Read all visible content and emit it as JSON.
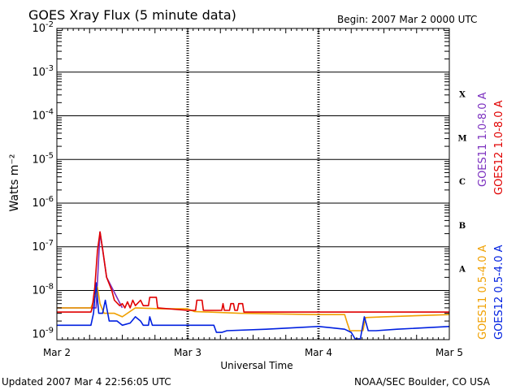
{
  "header": {
    "title": "GOES Xray Flux (5 minute data)",
    "begin": "Begin:  2007 Mar 2 0000 UTC"
  },
  "footer": {
    "updated": "Updated 2007 Mar  4 22:56:05 UTC",
    "credit": "NOAA/SEC Boulder, CO USA"
  },
  "colors": {
    "goes11_long": "#7b2fbf",
    "goes12_long": "#e00000",
    "goes11_short": "#f0a000",
    "goes12_short": "#0020e0"
  },
  "chart_data": {
    "type": "line",
    "title": "GOES Xray Flux (5 minute data)",
    "xlabel": "Universal Time",
    "ylabel": "Watts m⁻²",
    "yscale": "log",
    "ylim": [
      7.5e-10,
      0.01
    ],
    "xlim": [
      0,
      3
    ],
    "x_tick_labels": [
      "Mar 2",
      "Mar 3",
      "Mar 4",
      "Mar 5"
    ],
    "y_tick_labels": [
      {
        "base": "10",
        "exp": "-9"
      },
      {
        "base": "10",
        "exp": "-8"
      },
      {
        "base": "10",
        "exp": "-7"
      },
      {
        "base": "10",
        "exp": "-6"
      },
      {
        "base": "10",
        "exp": "-5"
      },
      {
        "base": "10",
        "exp": "-4"
      },
      {
        "base": "10",
        "exp": "-3"
      },
      {
        "base": "10",
        "exp": "-2"
      }
    ],
    "flare_classes": [
      "A",
      "B",
      "C",
      "M",
      "X"
    ],
    "grid": true,
    "series": [
      {
        "name": "GOES11 1.0-8.0 A",
        "color": "#7b2fbf",
        "points": [
          [
            0,
            4e-09
          ],
          [
            0.3,
            4e-09
          ],
          [
            0.33,
            2.2e-07
          ],
          [
            0.38,
            2e-08
          ],
          [
            0.5,
            4e-09
          ]
        ]
      },
      {
        "name": "GOES12 1.0-8.0 A",
        "color": "#e00000",
        "points": [
          [
            0,
            3.2e-09
          ],
          [
            0.26,
            3.2e-09
          ],
          [
            0.27,
            4e-09
          ],
          [
            0.29,
            1.2e-08
          ],
          [
            0.31,
            8e-08
          ],
          [
            0.33,
            2.2e-07
          ],
          [
            0.35,
            9e-08
          ],
          [
            0.38,
            2e-08
          ],
          [
            0.42,
            1e-08
          ],
          [
            0.44,
            6e-09
          ],
          [
            0.48,
            4.5e-09
          ],
          [
            0.5,
            5e-09
          ],
          [
            0.52,
            4e-09
          ],
          [
            0.54,
            5.5e-09
          ],
          [
            0.56,
            4e-09
          ],
          [
            0.58,
            6e-09
          ],
          [
            0.6,
            4.5e-09
          ],
          [
            0.64,
            6e-09
          ],
          [
            0.66,
            4.5e-09
          ],
          [
            0.7,
            4.5e-09
          ],
          [
            0.71,
            7e-09
          ],
          [
            0.76,
            7e-09
          ],
          [
            0.77,
            4e-09
          ],
          [
            1.0,
            3.5e-09
          ],
          [
            1.06,
            3.5e-09
          ],
          [
            1.07,
            6e-09
          ],
          [
            1.11,
            6e-09
          ],
          [
            1.12,
            3.5e-09
          ],
          [
            1.26,
            3.5e-09
          ],
          [
            1.27,
            5e-09
          ],
          [
            1.28,
            3.5e-09
          ],
          [
            1.32,
            3.5e-09
          ],
          [
            1.33,
            5e-09
          ],
          [
            1.35,
            5e-09
          ],
          [
            1.36,
            3.5e-09
          ],
          [
            1.38,
            3.5e-09
          ],
          [
            1.39,
            5e-09
          ],
          [
            1.42,
            5e-09
          ],
          [
            1.43,
            3.2e-09
          ],
          [
            3,
            3.2e-09
          ]
        ]
      },
      {
        "name": "GOES11 0.5-4.0 A",
        "color": "#f0a000",
        "points": [
          [
            0,
            4e-09
          ],
          [
            0.26,
            4e-09
          ],
          [
            0.3,
            8e-09
          ],
          [
            0.31,
            1.2e-08
          ],
          [
            0.33,
            5e-09
          ],
          [
            0.36,
            3e-09
          ],
          [
            0.44,
            3e-09
          ],
          [
            0.5,
            2.5e-09
          ],
          [
            0.6,
            4e-09
          ],
          [
            0.8,
            3.8e-09
          ],
          [
            1.0,
            3.8e-09
          ],
          [
            1.05,
            3.3e-09
          ],
          [
            1.4,
            3e-09
          ],
          [
            2.0,
            2.8e-09
          ],
          [
            2.2,
            2.8e-09
          ],
          [
            2.22,
            1.8e-09
          ],
          [
            2.24,
            1.2e-09
          ],
          [
            2.34,
            1.2e-09
          ],
          [
            2.36,
            2.4e-09
          ],
          [
            2.5,
            2.5e-09
          ],
          [
            3,
            2.8e-09
          ]
        ]
      },
      {
        "name": "GOES12 0.5-4.0 A",
        "color": "#0020e0",
        "points": [
          [
            0,
            1.6e-09
          ],
          [
            0.26,
            1.6e-09
          ],
          [
            0.28,
            3e-09
          ],
          [
            0.3,
            1.5e-08
          ],
          [
            0.32,
            3e-09
          ],
          [
            0.35,
            3e-09
          ],
          [
            0.37,
            6e-09
          ],
          [
            0.4,
            2e-09
          ],
          [
            0.46,
            2e-09
          ],
          [
            0.5,
            1.6e-09
          ],
          [
            0.56,
            1.8e-09
          ],
          [
            0.6,
            2.5e-09
          ],
          [
            0.64,
            2e-09
          ],
          [
            0.66,
            1.6e-09
          ],
          [
            0.7,
            1.6e-09
          ],
          [
            0.71,
            2.5e-09
          ],
          [
            0.73,
            1.6e-09
          ],
          [
            1.2,
            1.6e-09
          ],
          [
            1.22,
            1.1e-09
          ],
          [
            1.26,
            1.1e-09
          ],
          [
            1.3,
            1.2e-09
          ],
          [
            1.6,
            1.3e-09
          ],
          [
            2.0,
            1.5e-09
          ],
          [
            2.1,
            1.4e-09
          ],
          [
            2.2,
            1.3e-09
          ],
          [
            2.25,
            1.1e-09
          ],
          [
            2.28,
            7.8e-10
          ],
          [
            2.32,
            7.8e-10
          ],
          [
            2.35,
            2.5e-09
          ],
          [
            2.38,
            1.2e-09
          ],
          [
            2.44,
            1.2e-09
          ],
          [
            2.6,
            1.3e-09
          ],
          [
            3,
            1.5e-09
          ]
        ]
      }
    ],
    "legend": "right"
  }
}
